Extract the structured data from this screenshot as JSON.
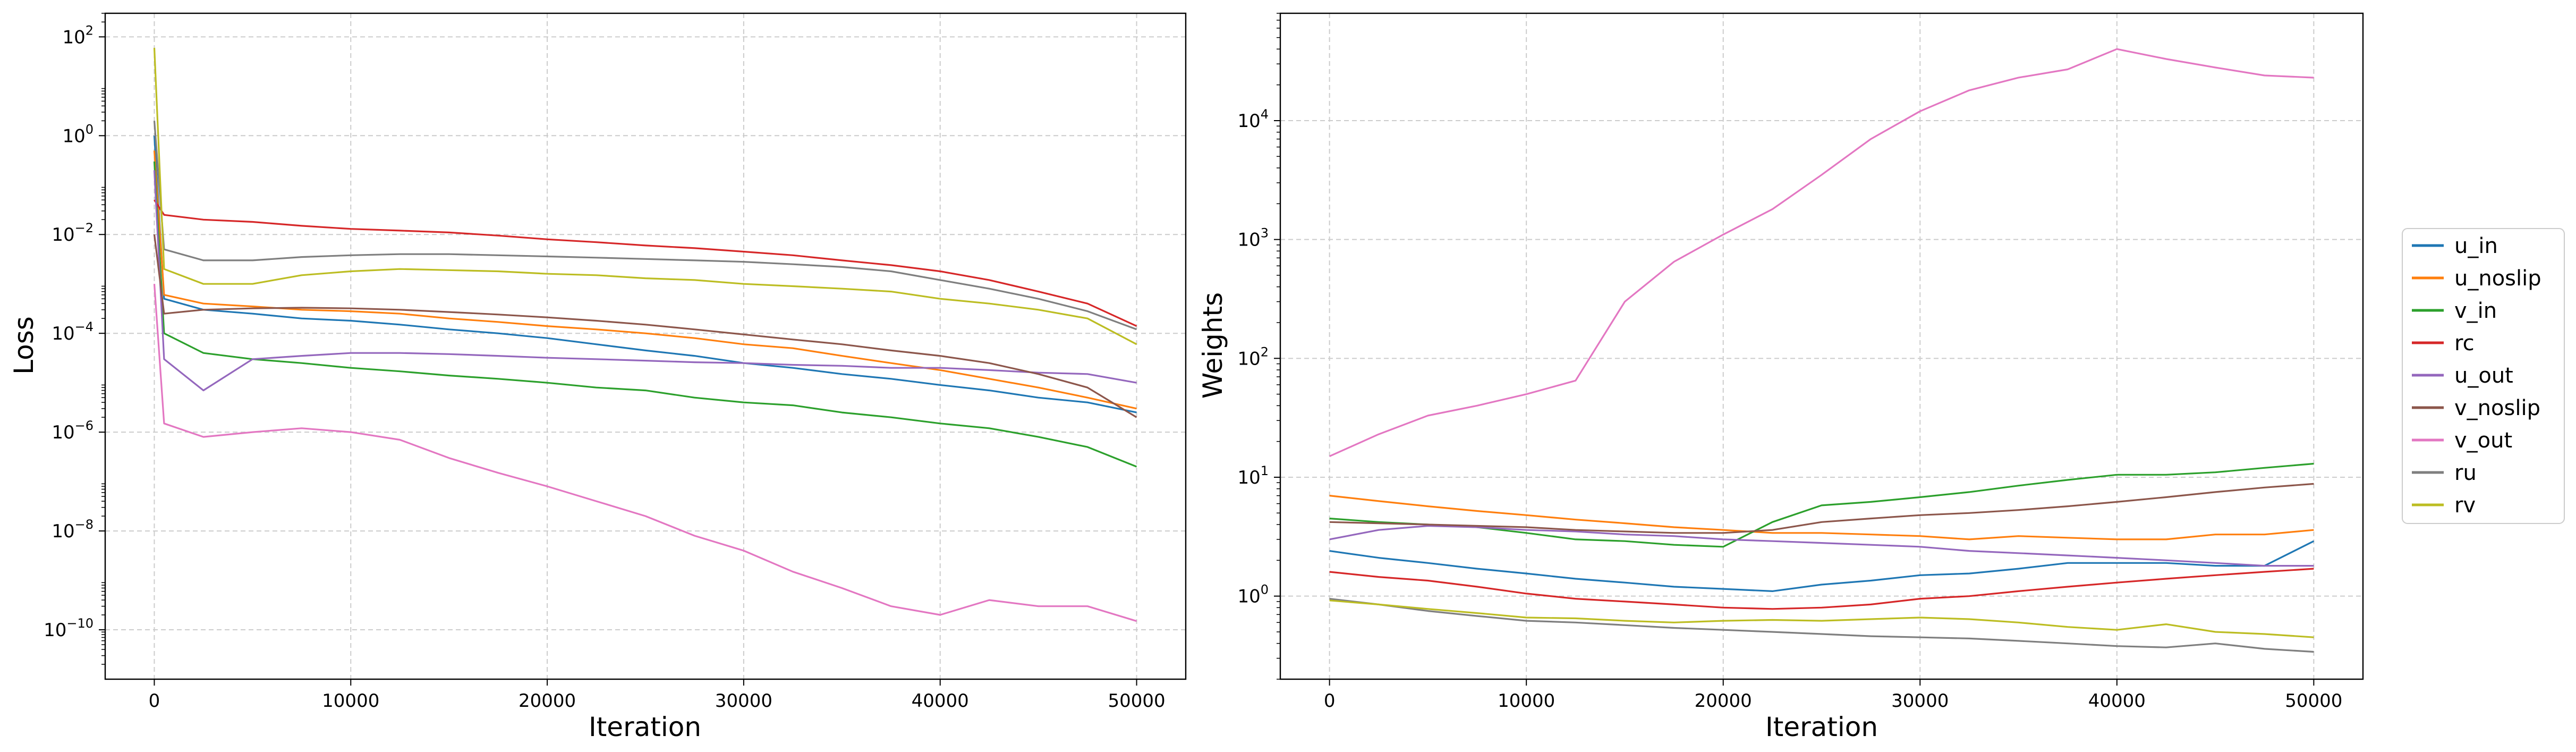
{
  "chart_data": [
    {
      "type": "line",
      "title": "",
      "xlabel": "Iteration",
      "ylabel": "Loss",
      "yscale": "log",
      "xlim": [
        -2500,
        52500
      ],
      "ylim": [
        1e-11,
        300
      ],
      "x_ticks": [
        0,
        10000,
        20000,
        30000,
        40000,
        50000
      ],
      "x_tick_labels": [
        "0",
        "10000",
        "20000",
        "30000",
        "40000",
        "50000"
      ],
      "y_tick_exponents": [
        2,
        0,
        -2,
        -4,
        -6,
        -8,
        -10
      ],
      "grid": true,
      "x": [
        0,
        500,
        2500,
        5000,
        7500,
        10000,
        12500,
        15000,
        17500,
        20000,
        22500,
        25000,
        27500,
        30000,
        32500,
        35000,
        37500,
        40000,
        42500,
        45000,
        47500,
        50000
      ],
      "series": [
        {
          "name": "u_in",
          "values": [
            1.0,
            0.0005,
            0.0003,
            0.00025,
            0.0002,
            0.00018,
            0.00015,
            0.00012,
            0.0001,
            8e-05,
            6e-05,
            4.5e-05,
            3.5e-05,
            2.5e-05,
            2e-05,
            1.5e-05,
            1.2e-05,
            9e-06,
            7e-06,
            5e-06,
            4e-06,
            2.5e-06
          ]
        },
        {
          "name": "u_noslip",
          "values": [
            0.5,
            0.0006,
            0.0004,
            0.00035,
            0.0003,
            0.00028,
            0.00025,
            0.0002,
            0.00017,
            0.00014,
            0.00012,
            0.0001,
            8e-05,
            6e-05,
            5e-05,
            3.5e-05,
            2.5e-05,
            1.8e-05,
            1.2e-05,
            8e-06,
            5e-06,
            3e-06
          ]
        },
        {
          "name": "v_in",
          "values": [
            0.3,
            0.0001,
            4e-05,
            3e-05,
            2.5e-05,
            2e-05,
            1.7e-05,
            1.4e-05,
            1.2e-05,
            1e-05,
            8e-06,
            7e-06,
            5e-06,
            4e-06,
            3.5e-06,
            2.5e-06,
            2e-06,
            1.5e-06,
            1.2e-06,
            8e-07,
            5e-07,
            2e-07
          ]
        },
        {
          "name": "rc",
          "values": [
            0.05,
            0.025,
            0.02,
            0.018,
            0.015,
            0.013,
            0.012,
            0.011,
            0.0095,
            0.008,
            0.007,
            0.006,
            0.0053,
            0.0045,
            0.0038,
            0.003,
            0.0024,
            0.0018,
            0.0012,
            0.0007,
            0.0004,
            0.00014
          ]
        },
        {
          "name": "u_out",
          "values": [
            0.2,
            3e-05,
            7e-06,
            3e-05,
            3.5e-05,
            4e-05,
            4e-05,
            3.8e-05,
            3.5e-05,
            3.2e-05,
            3e-05,
            2.8e-05,
            2.6e-05,
            2.5e-05,
            2.3e-05,
            2.2e-05,
            2e-05,
            2e-05,
            1.8e-05,
            1.6e-05,
            1.5e-05,
            1e-05
          ]
        },
        {
          "name": "v_noslip",
          "values": [
            0.01,
            0.00025,
            0.0003,
            0.00032,
            0.00033,
            0.00032,
            0.0003,
            0.00027,
            0.00024,
            0.00021,
            0.00018,
            0.00015,
            0.00012,
            9.5e-05,
            7.5e-05,
            6e-05,
            4.5e-05,
            3.5e-05,
            2.5e-05,
            1.5e-05,
            8e-06,
            2e-06
          ]
        },
        {
          "name": "v_out",
          "values": [
            0.001,
            1.5e-06,
            8e-07,
            1e-06,
            1.2e-06,
            1e-06,
            7e-07,
            3e-07,
            1.5e-07,
            8e-08,
            4e-08,
            2e-08,
            8e-09,
            4e-09,
            1.5e-09,
            7e-10,
            3e-10,
            2e-10,
            4e-10,
            3e-10,
            3e-10,
            1.5e-10
          ]
        },
        {
          "name": "ru",
          "values": [
            2.0,
            0.005,
            0.003,
            0.003,
            0.0035,
            0.0038,
            0.004,
            0.004,
            0.0038,
            0.0036,
            0.0034,
            0.0032,
            0.003,
            0.0028,
            0.0025,
            0.0022,
            0.0018,
            0.0012,
            0.0008,
            0.0005,
            0.00028,
            0.00012
          ]
        },
        {
          "name": "rv",
          "values": [
            60.0,
            0.002,
            0.001,
            0.001,
            0.0015,
            0.0018,
            0.002,
            0.0019,
            0.0018,
            0.0016,
            0.0015,
            0.0013,
            0.0012,
            0.001,
            0.0009,
            0.0008,
            0.0007,
            0.0005,
            0.0004,
            0.0003,
            0.0002,
            6e-05
          ]
        }
      ]
    },
    {
      "type": "line",
      "title": "",
      "xlabel": "Iteration",
      "ylabel": "Weights",
      "yscale": "log",
      "xlim": [
        -2500,
        52500
      ],
      "ylim": [
        0.2,
        80000
      ],
      "x_ticks": [
        0,
        10000,
        20000,
        30000,
        40000,
        50000
      ],
      "x_tick_labels": [
        "0",
        "10000",
        "20000",
        "30000",
        "40000",
        "50000"
      ],
      "y_tick_exponents": [
        0,
        1,
        2,
        3,
        4
      ],
      "grid": true,
      "x": [
        0,
        2500,
        5000,
        7500,
        10000,
        12500,
        15000,
        17500,
        20000,
        22500,
        25000,
        27500,
        30000,
        32500,
        35000,
        37500,
        40000,
        42500,
        45000,
        47500,
        50000
      ],
      "series": [
        {
          "name": "u_in",
          "values": [
            2.4,
            2.1,
            1.9,
            1.7,
            1.55,
            1.4,
            1.3,
            1.2,
            1.15,
            1.1,
            1.25,
            1.35,
            1.5,
            1.55,
            1.7,
            1.9,
            1.9,
            1.9,
            1.8,
            1.8,
            2.9
          ]
        },
        {
          "name": "u_noslip",
          "values": [
            7.0,
            6.3,
            5.7,
            5.2,
            4.8,
            4.4,
            4.1,
            3.8,
            3.6,
            3.4,
            3.4,
            3.3,
            3.2,
            3.0,
            3.2,
            3.1,
            3.0,
            3.0,
            3.3,
            3.3,
            3.6
          ]
        },
        {
          "name": "v_in",
          "values": [
            4.5,
            4.2,
            4.0,
            3.8,
            3.4,
            3.0,
            2.9,
            2.7,
            2.6,
            4.2,
            5.8,
            6.2,
            6.8,
            7.5,
            8.5,
            9.5,
            10.5,
            10.5,
            11.0,
            12.0,
            13.0
          ]
        },
        {
          "name": "rc",
          "values": [
            1.6,
            1.45,
            1.35,
            1.2,
            1.05,
            0.95,
            0.9,
            0.85,
            0.8,
            0.78,
            0.8,
            0.85,
            0.95,
            1.0,
            1.1,
            1.2,
            1.3,
            1.4,
            1.5,
            1.6,
            1.7
          ]
        },
        {
          "name": "u_out",
          "values": [
            3.0,
            3.6,
            3.9,
            3.8,
            3.6,
            3.5,
            3.3,
            3.2,
            3.0,
            2.9,
            2.8,
            2.7,
            2.6,
            2.4,
            2.3,
            2.2,
            2.1,
            2.0,
            1.9,
            1.8,
            1.8
          ]
        },
        {
          "name": "v_noslip",
          "values": [
            4.2,
            4.1,
            4.0,
            3.9,
            3.8,
            3.6,
            3.5,
            3.4,
            3.4,
            3.6,
            4.2,
            4.5,
            4.8,
            5.0,
            5.3,
            5.7,
            6.2,
            6.8,
            7.5,
            8.2,
            8.8
          ]
        },
        {
          "name": "v_out",
          "values": [
            15,
            23,
            33,
            40,
            50,
            65,
            300,
            650,
            1100,
            1800,
            3500,
            7000,
            12000,
            18000,
            23000,
            27000,
            40000,
            33000,
            28000,
            24000,
            23000
          ]
        },
        {
          "name": "ru",
          "values": [
            0.95,
            0.85,
            0.75,
            0.68,
            0.62,
            0.6,
            0.57,
            0.54,
            0.52,
            0.5,
            0.48,
            0.46,
            0.45,
            0.44,
            0.42,
            0.4,
            0.38,
            0.37,
            0.4,
            0.36,
            0.34
          ]
        },
        {
          "name": "rv",
          "values": [
            0.92,
            0.85,
            0.78,
            0.72,
            0.66,
            0.65,
            0.62,
            0.6,
            0.62,
            0.63,
            0.62,
            0.64,
            0.66,
            0.64,
            0.6,
            0.55,
            0.52,
            0.58,
            0.5,
            0.48,
            0.45
          ]
        }
      ]
    }
  ],
  "legend": {
    "placement": "right",
    "entries": [
      "u_in",
      "u_noslip",
      "v_in",
      "rc",
      "u_out",
      "v_noslip",
      "v_out",
      "ru",
      "rv"
    ]
  },
  "colors": {
    "u_in": "#1f77b4",
    "u_noslip": "#ff7f0e",
    "v_in": "#2ca02c",
    "rc": "#d62728",
    "u_out": "#9467bd",
    "v_noslip": "#8c564b",
    "v_out": "#e377c2",
    "ru": "#7f7f7f",
    "rv": "#bcbd22",
    "grid": "#cccccc",
    "axes": "#000000",
    "background": "#ffffff"
  }
}
